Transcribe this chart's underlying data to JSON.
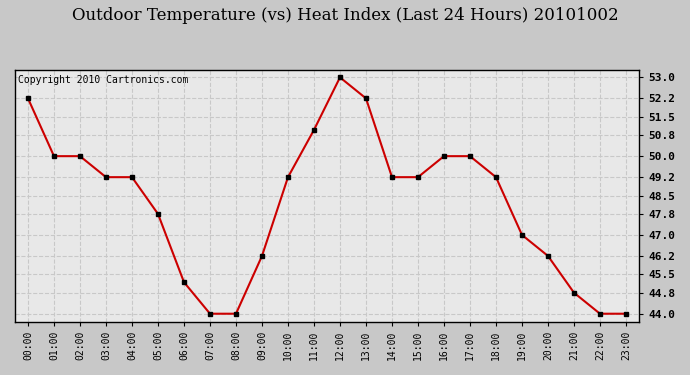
{
  "title": "Outdoor Temperature (vs) Heat Index (Last 24 Hours) 20101002",
  "copyright": "Copyright 2010 Cartronics.com",
  "x_labels": [
    "00:00",
    "01:00",
    "02:00",
    "03:00",
    "04:00",
    "05:00",
    "06:00",
    "07:00",
    "08:00",
    "09:00",
    "10:00",
    "11:00",
    "12:00",
    "13:00",
    "14:00",
    "15:00",
    "16:00",
    "17:00",
    "18:00",
    "19:00",
    "20:00",
    "21:00",
    "22:00",
    "23:00"
  ],
  "y_values": [
    52.2,
    50.0,
    50.0,
    49.2,
    49.2,
    47.8,
    45.2,
    44.0,
    44.0,
    46.2,
    49.2,
    51.0,
    53.0,
    52.2,
    49.2,
    49.2,
    50.0,
    50.0,
    49.2,
    47.0,
    46.2,
    44.8,
    44.0,
    44.0
  ],
  "line_color": "#cc0000",
  "marker_color": "#000000",
  "background_color": "#e8e8e8",
  "grid_color": "#c8c8c8",
  "yticks": [
    44.0,
    44.8,
    45.5,
    46.2,
    47.0,
    47.8,
    48.5,
    49.2,
    50.0,
    50.8,
    51.5,
    52.2,
    53.0
  ],
  "ylim": [
    43.7,
    53.3
  ],
  "title_fontsize": 12,
  "copyright_fontsize": 7
}
